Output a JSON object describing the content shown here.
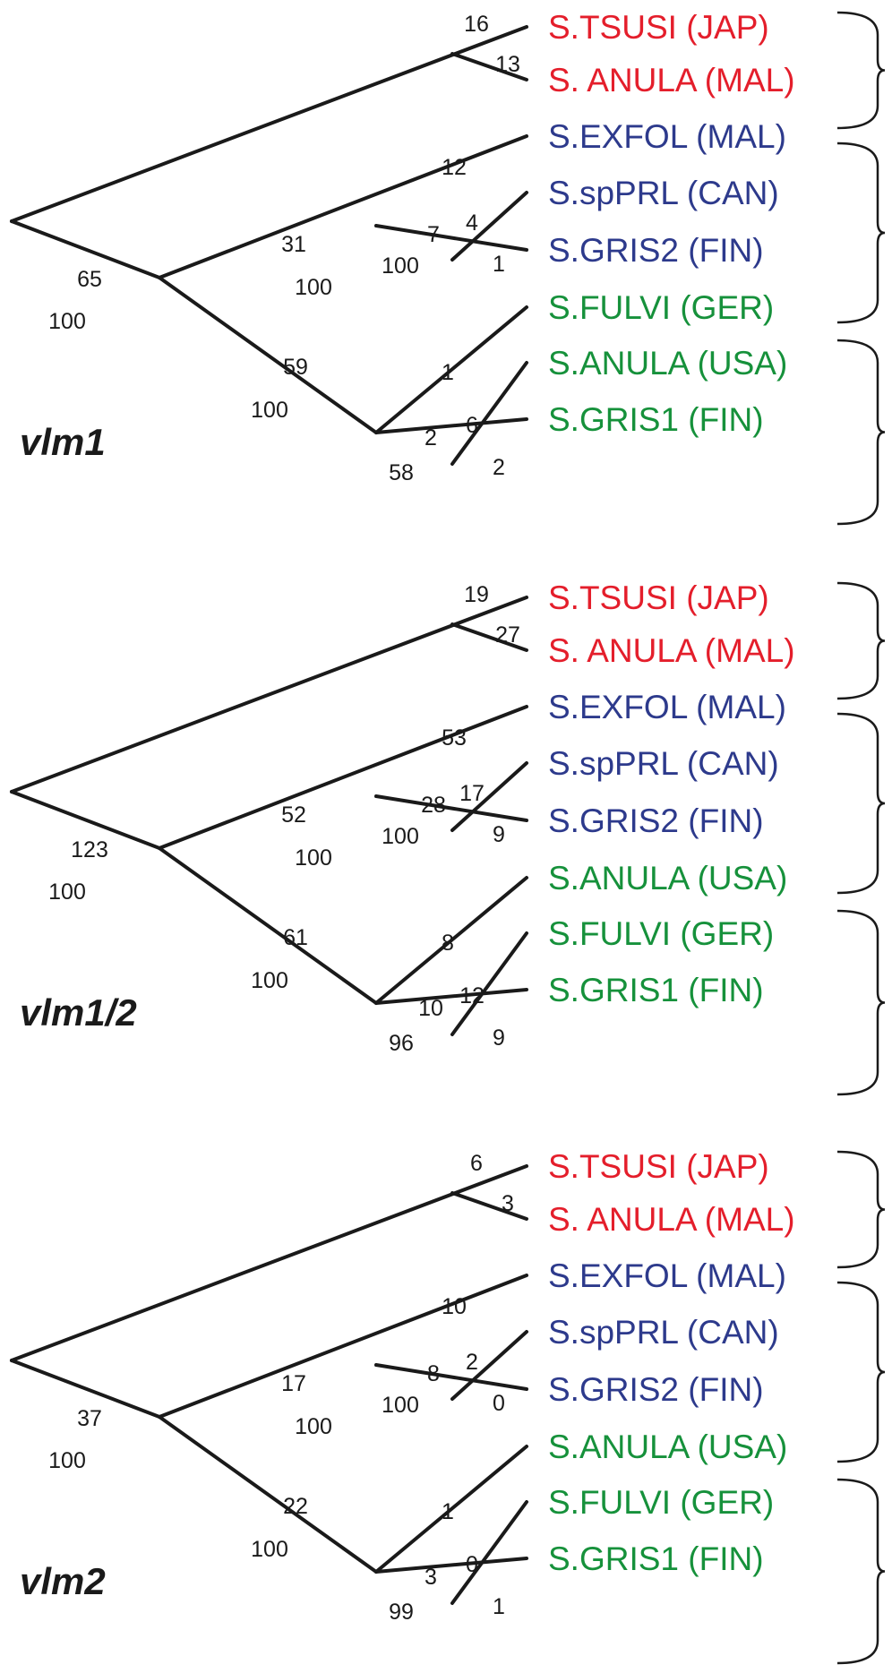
{
  "colors": {
    "red": "#e41e2b",
    "blue": "#2d3a8c",
    "green": "#16913b",
    "line": "#1a1a1a"
  },
  "panels": [
    {
      "title": "vlm1",
      "leaves": [
        {
          "label": "S.TSUSI (JAP)",
          "color": "red"
        },
        {
          "label": "S. ANULA (MAL)",
          "color": "red"
        },
        {
          "label": "S.EXFOL (MAL)",
          "color": "blue"
        },
        {
          "label": "S.spPRL (CAN)",
          "color": "blue"
        },
        {
          "label": "S.GRIS2 (FIN)",
          "color": "blue"
        },
        {
          "label": "S.FULVI (GER)",
          "color": "green"
        },
        {
          "label": "S.ANULA (USA)",
          "color": "green"
        },
        {
          "label": "S.GRIS1 (FIN)",
          "color": "green"
        }
      ],
      "branch_labels": {
        "root_to_clade12": "65",
        "root_to_clade12_support": "100",
        "top_pair": "16",
        "top_lower": "13",
        "clade2_stem": "31",
        "clade2_stem_support": "100",
        "clade2_leaf1": "12",
        "clade2_inner": "7",
        "clade2_inner_support": "100",
        "clade2_leaf2": "4",
        "clade2_leaf3": "1",
        "clade3_stem": "59",
        "clade3_stem_support": "100",
        "clade3_leaf1": "1",
        "clade3_inner": "2",
        "clade3_inner_support": "58",
        "clade3_leaf2": "6",
        "clade3_leaf3": "2"
      }
    },
    {
      "title": "vlm1/2",
      "leaves": [
        {
          "label": "S.TSUSI (JAP)",
          "color": "red"
        },
        {
          "label": "S. ANULA (MAL)",
          "color": "red"
        },
        {
          "label": "S.EXFOL (MAL)",
          "color": "blue"
        },
        {
          "label": "S.spPRL (CAN)",
          "color": "blue"
        },
        {
          "label": "S.GRIS2 (FIN)",
          "color": "blue"
        },
        {
          "label": "S.ANULA (USA)",
          "color": "green"
        },
        {
          "label": "S.FULVI (GER)",
          "color": "green"
        },
        {
          "label": "S.GRIS1 (FIN)",
          "color": "green"
        }
      ],
      "branch_labels": {
        "root_to_clade12": "123",
        "root_to_clade12_support": "100",
        "top_pair": "19",
        "top_lower": "27",
        "clade2_stem": "52",
        "clade2_stem_support": "100",
        "clade2_leaf1": "53",
        "clade2_inner": "28",
        "clade2_inner_support": "100",
        "clade2_leaf2": "17",
        "clade2_leaf3": "9",
        "clade3_stem": "61",
        "clade3_stem_support": "100",
        "clade3_leaf1": "8",
        "clade3_inner": "10",
        "clade3_inner_support": "96",
        "clade3_leaf2": "12",
        "clade3_leaf3": "9"
      }
    },
    {
      "title": "vlm2",
      "leaves": [
        {
          "label": "S.TSUSI (JAP)",
          "color": "red"
        },
        {
          "label": "S. ANULA (MAL)",
          "color": "red"
        },
        {
          "label": "S.EXFOL (MAL)",
          "color": "blue"
        },
        {
          "label": "S.spPRL (CAN)",
          "color": "blue"
        },
        {
          "label": "S.GRIS2 (FIN)",
          "color": "blue"
        },
        {
          "label": "S.ANULA (USA)",
          "color": "green"
        },
        {
          "label": "S.FULVI (GER)",
          "color": "green"
        },
        {
          "label": "S.GRIS1 (FIN)",
          "color": "green"
        }
      ],
      "branch_labels": {
        "root_to_clade12": "37",
        "root_to_clade12_support": "100",
        "top_pair": "6",
        "top_lower": "3",
        "clade2_stem": "17",
        "clade2_stem_support": "100",
        "clade2_leaf1": "10",
        "clade2_inner": "8",
        "clade2_inner_support": "100",
        "clade2_leaf2": "2",
        "clade2_leaf3": "0",
        "clade3_stem": "22",
        "clade3_stem_support": "100",
        "clade3_leaf1": "1",
        "clade3_inner": "3",
        "clade3_inner_support": "99",
        "clade3_leaf2": "0",
        "clade3_leaf3": "1"
      }
    }
  ]
}
